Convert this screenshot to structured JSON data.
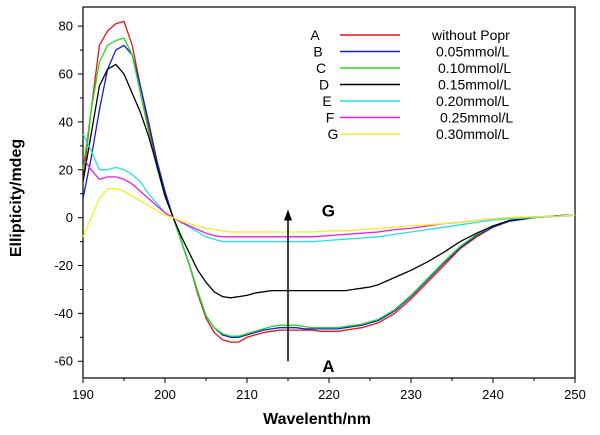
{
  "chart_data": {
    "type": "line",
    "xlabel": "Wavelenth/nm",
    "ylabel": "Ellipticity/mdeg",
    "xlim": [
      190,
      250
    ],
    "ylim": [
      -67,
      88
    ],
    "xticks": [
      190,
      200,
      210,
      220,
      230,
      240,
      250
    ],
    "yticks": [
      -60,
      -40,
      -20,
      0,
      20,
      40,
      60,
      80
    ],
    "grid": false,
    "legend_position": "top-right",
    "annotations": [
      {
        "text": "G",
        "x": 217,
        "y": 3
      },
      {
        "text": "A",
        "x": 217,
        "y": -62
      },
      {
        "text": "arrow",
        "x": 215,
        "y_from": -60,
        "y_to": 3
      }
    ],
    "series": [
      {
        "letter": "A",
        "name": "without Popr",
        "color": "#e8101a",
        "x": [
          190,
          191,
          192,
          193,
          194,
          195,
          196,
          197,
          198,
          199,
          200,
          201,
          202,
          203,
          204,
          205,
          206,
          207,
          208,
          209,
          210,
          211,
          212,
          213,
          214,
          215,
          216,
          217,
          218,
          219,
          220,
          221,
          222,
          223,
          224,
          225,
          226,
          227,
          228,
          229,
          230,
          232,
          234,
          236,
          238,
          240,
          242,
          245,
          248,
          250
        ],
        "y": [
          15,
          45,
          72,
          78,
          81,
          82,
          72,
          55,
          38,
          22,
          10,
          0,
          -10,
          -20,
          -32,
          -42,
          -48,
          -51,
          -52,
          -52,
          -50,
          -49,
          -48,
          -47.5,
          -47,
          -47,
          -47,
          -47,
          -47,
          -47.5,
          -47.5,
          -47.5,
          -47,
          -46.5,
          -46,
          -45,
          -44,
          -42,
          -40,
          -37,
          -34,
          -27,
          -20,
          -13,
          -8,
          -4,
          -1.5,
          0,
          0.8,
          1
        ]
      },
      {
        "letter": "B",
        "name": "0.05mmol/L",
        "color": "#1020d0",
        "x": [
          190,
          191,
          192,
          193,
          194,
          195,
          196,
          197,
          198,
          199,
          200,
          201,
          202,
          203,
          204,
          205,
          206,
          207,
          208,
          209,
          210,
          211,
          212,
          213,
          214,
          215,
          216,
          217,
          218,
          219,
          220,
          221,
          222,
          223,
          224,
          225,
          226,
          227,
          228,
          229,
          230,
          232,
          234,
          236,
          238,
          240,
          242,
          245,
          248,
          250
        ],
        "y": [
          8,
          25,
          45,
          62,
          70,
          72,
          68,
          55,
          40,
          24,
          11,
          0,
          -10,
          -20,
          -31,
          -41,
          -46,
          -49,
          -50,
          -50,
          -49,
          -48,
          -47,
          -46.5,
          -46,
          -46,
          -46,
          -46.5,
          -46.5,
          -46.5,
          -46.5,
          -46.5,
          -46,
          -45.5,
          -45,
          -44,
          -43,
          -41,
          -39,
          -36,
          -33,
          -26,
          -19,
          -12.5,
          -7.5,
          -4,
          -1.5,
          0,
          0.8,
          1
        ]
      },
      {
        "letter": "C",
        "name": "0.10mmol/L",
        "color": "#20dd20",
        "x": [
          190,
          191,
          192,
          193,
          194,
          195,
          196,
          197,
          198,
          199,
          200,
          201,
          202,
          203,
          204,
          205,
          206,
          207,
          208,
          209,
          210,
          211,
          212,
          213,
          214,
          215,
          216,
          217,
          218,
          219,
          220,
          221,
          222,
          223,
          224,
          225,
          226,
          227,
          228,
          229,
          230,
          232,
          234,
          236,
          238,
          240,
          242,
          245,
          248,
          250
        ],
        "y": [
          20,
          45,
          65,
          72,
          74,
          75,
          68,
          52,
          36,
          21,
          9,
          0,
          -10,
          -20,
          -31,
          -41,
          -46,
          -48.5,
          -49.5,
          -49.5,
          -48.5,
          -47.5,
          -46.5,
          -45.5,
          -45,
          -45,
          -45,
          -45.5,
          -46,
          -46,
          -46,
          -46,
          -45.5,
          -45,
          -44.5,
          -43.5,
          -42.5,
          -40.5,
          -38.5,
          -35.5,
          -32.5,
          -25.5,
          -18.5,
          -12,
          -7,
          -3.5,
          -1.2,
          0,
          0.8,
          1
        ]
      },
      {
        "letter": "D",
        "name": "0.15mmol/L",
        "color": "#000000",
        "x": [
          190,
          191,
          192,
          193,
          194,
          195,
          196,
          197,
          198,
          199,
          200,
          201,
          202,
          203,
          204,
          205,
          206,
          207,
          208,
          209,
          210,
          211,
          212,
          213,
          214,
          215,
          216,
          217,
          218,
          219,
          220,
          221,
          222,
          223,
          224,
          225,
          226,
          227,
          228,
          229,
          230,
          232,
          234,
          236,
          238,
          240,
          242,
          245,
          248,
          250
        ],
        "y": [
          15,
          35,
          55,
          62,
          64,
          60,
          52,
          44,
          34,
          22,
          9,
          0,
          -8,
          -15,
          -22,
          -27,
          -31,
          -33,
          -33.5,
          -33,
          -32.5,
          -31.5,
          -31,
          -30.5,
          -30.5,
          -30.5,
          -30.5,
          -30.5,
          -30.5,
          -30.5,
          -30.5,
          -30.5,
          -30.5,
          -30,
          -29.5,
          -29,
          -28,
          -26.5,
          -25,
          -23.5,
          -22,
          -18.5,
          -14.5,
          -10,
          -6.5,
          -3.5,
          -1.2,
          0,
          0.8,
          1
        ]
      },
      {
        "letter": "E",
        "name": "0.20mmol/L",
        "color": "#20e0e8",
        "x": [
          190,
          191,
          192,
          193,
          194,
          195,
          196,
          197,
          198,
          199,
          200,
          201,
          202,
          203,
          204,
          205,
          206,
          207,
          208,
          209,
          210,
          212,
          214,
          216,
          218,
          220,
          222,
          224,
          226,
          228,
          230,
          232,
          234,
          236,
          238,
          240,
          242,
          245,
          248,
          250
        ],
        "y": [
          35,
          28,
          20,
          20,
          21,
          20,
          18,
          15,
          10,
          6,
          2,
          0,
          -2,
          -4,
          -6,
          -8,
          -9,
          -10,
          -10,
          -10,
          -10,
          -10,
          -10,
          -10,
          -10,
          -9.5,
          -9,
          -8.5,
          -8,
          -7,
          -6,
          -5,
          -4,
          -3,
          -2,
          -1,
          -0.5,
          0,
          0.5,
          1
        ]
      },
      {
        "letter": "F",
        "name": "0.25mmol/L",
        "color": "#e020e0",
        "x": [
          190,
          191,
          192,
          193,
          194,
          195,
          196,
          197,
          198,
          199,
          200,
          201,
          202,
          203,
          204,
          205,
          206,
          207,
          208,
          209,
          210,
          212,
          214,
          216,
          218,
          220,
          222,
          224,
          226,
          228,
          230,
          232,
          234,
          236,
          238,
          240,
          242,
          245,
          248,
          250
        ],
        "y": [
          25,
          20,
          16,
          17,
          17,
          16,
          14,
          11,
          8,
          5,
          2,
          0,
          -2,
          -3.5,
          -5,
          -6.5,
          -7.5,
          -8,
          -8,
          -8,
          -8,
          -8,
          -8,
          -8,
          -8,
          -7.5,
          -7,
          -6.5,
          -6,
          -5,
          -4.5,
          -3.5,
          -2.5,
          -2,
          -1.2,
          -0.5,
          0,
          0.3,
          0.7,
          1
        ]
      },
      {
        "letter": "G",
        "name": "0.30mmol/L",
        "color": "#f0f020",
        "x": [
          190,
          191,
          192,
          193,
          194,
          195,
          196,
          197,
          198,
          199,
          200,
          201,
          202,
          203,
          204,
          205,
          206,
          207,
          208,
          209,
          210,
          212,
          214,
          216,
          218,
          220,
          222,
          224,
          226,
          228,
          230,
          232,
          234,
          236,
          238,
          240,
          242,
          245,
          248,
          250
        ],
        "y": [
          -8,
          0,
          8,
          12,
          12,
          11,
          9,
          7,
          5,
          3,
          1,
          0,
          -1.5,
          -2.5,
          -3.5,
          -4.5,
          -5,
          -5.5,
          -6,
          -6,
          -6,
          -6,
          -6,
          -6,
          -6,
          -5.5,
          -5.5,
          -5,
          -4.5,
          -4,
          -3.5,
          -3,
          -2.5,
          -2,
          -1.2,
          -0.5,
          0,
          0.3,
          0.7,
          1
        ]
      }
    ]
  }
}
